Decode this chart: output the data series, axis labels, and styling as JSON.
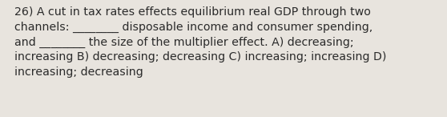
{
  "text": "26) A cut in tax rates effects equilibrium real GDP through two\nchannels: ________ disposable income and consumer spending,\nand ________ the size of the multiplier effect. A) decreasing;\nincreasing B) decreasing; decreasing C) increasing; increasing D)\nincreasing; decreasing",
  "bg_color": "#e8e4de",
  "text_color": "#2b2b2b",
  "font_size": 10.2,
  "fig_width": 5.58,
  "fig_height": 1.46,
  "dpi": 100
}
